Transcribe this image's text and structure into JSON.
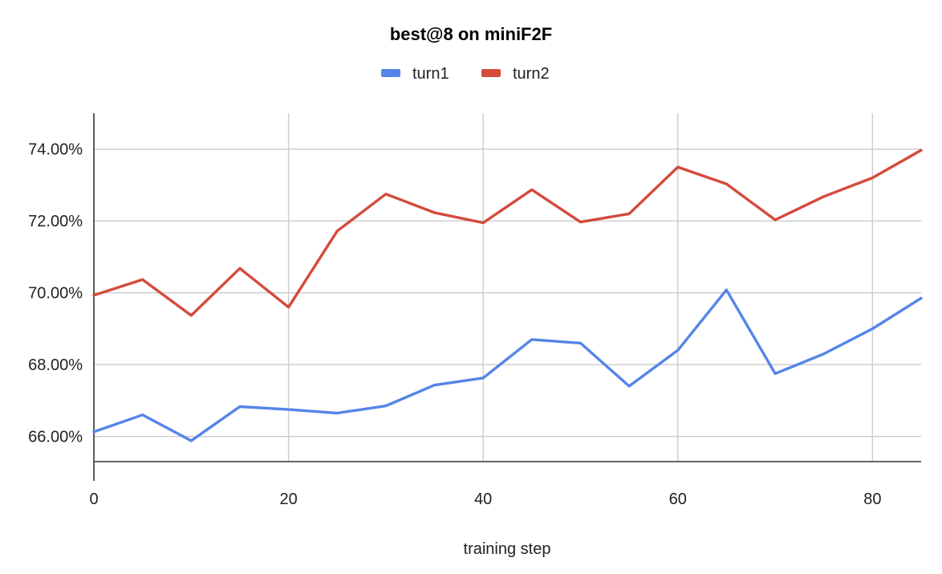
{
  "chart_data": {
    "type": "line",
    "title": "best@8 on miniF2F",
    "xlabel": "training step",
    "ylabel": "",
    "xlim": [
      0,
      85
    ],
    "ylim": [
      65.3,
      75
    ],
    "x_ticks": [
      0,
      20,
      40,
      60,
      80
    ],
    "x_tick_labels": [
      "0",
      "20",
      "40",
      "60",
      "80"
    ],
    "y_ticks": [
      66,
      68,
      70,
      72,
      74
    ],
    "y_tick_labels": [
      "66.00%",
      "68.00%",
      "70.00%",
      "72.00%",
      "74.00%"
    ],
    "grid": true,
    "legend_position": "top",
    "x": [
      0,
      5,
      10,
      15,
      20,
      25,
      30,
      35,
      40,
      45,
      50,
      55,
      60,
      65,
      70,
      75,
      80,
      85
    ],
    "series": [
      {
        "name": "turn1",
        "color": "#5585e8",
        "values": [
          66.13,
          66.6,
          65.88,
          66.83,
          66.75,
          66.65,
          66.85,
          67.43,
          67.63,
          68.7,
          68.6,
          67.4,
          68.4,
          70.08,
          67.75,
          68.3,
          69.0,
          69.85
        ]
      },
      {
        "name": "turn2",
        "color": "#d34b3c",
        "values": [
          69.93,
          70.37,
          69.37,
          70.68,
          69.6,
          71.72,
          72.75,
          72.23,
          71.95,
          72.87,
          71.97,
          72.2,
          73.5,
          73.03,
          72.03,
          72.68,
          73.2,
          73.97
        ]
      }
    ]
  }
}
